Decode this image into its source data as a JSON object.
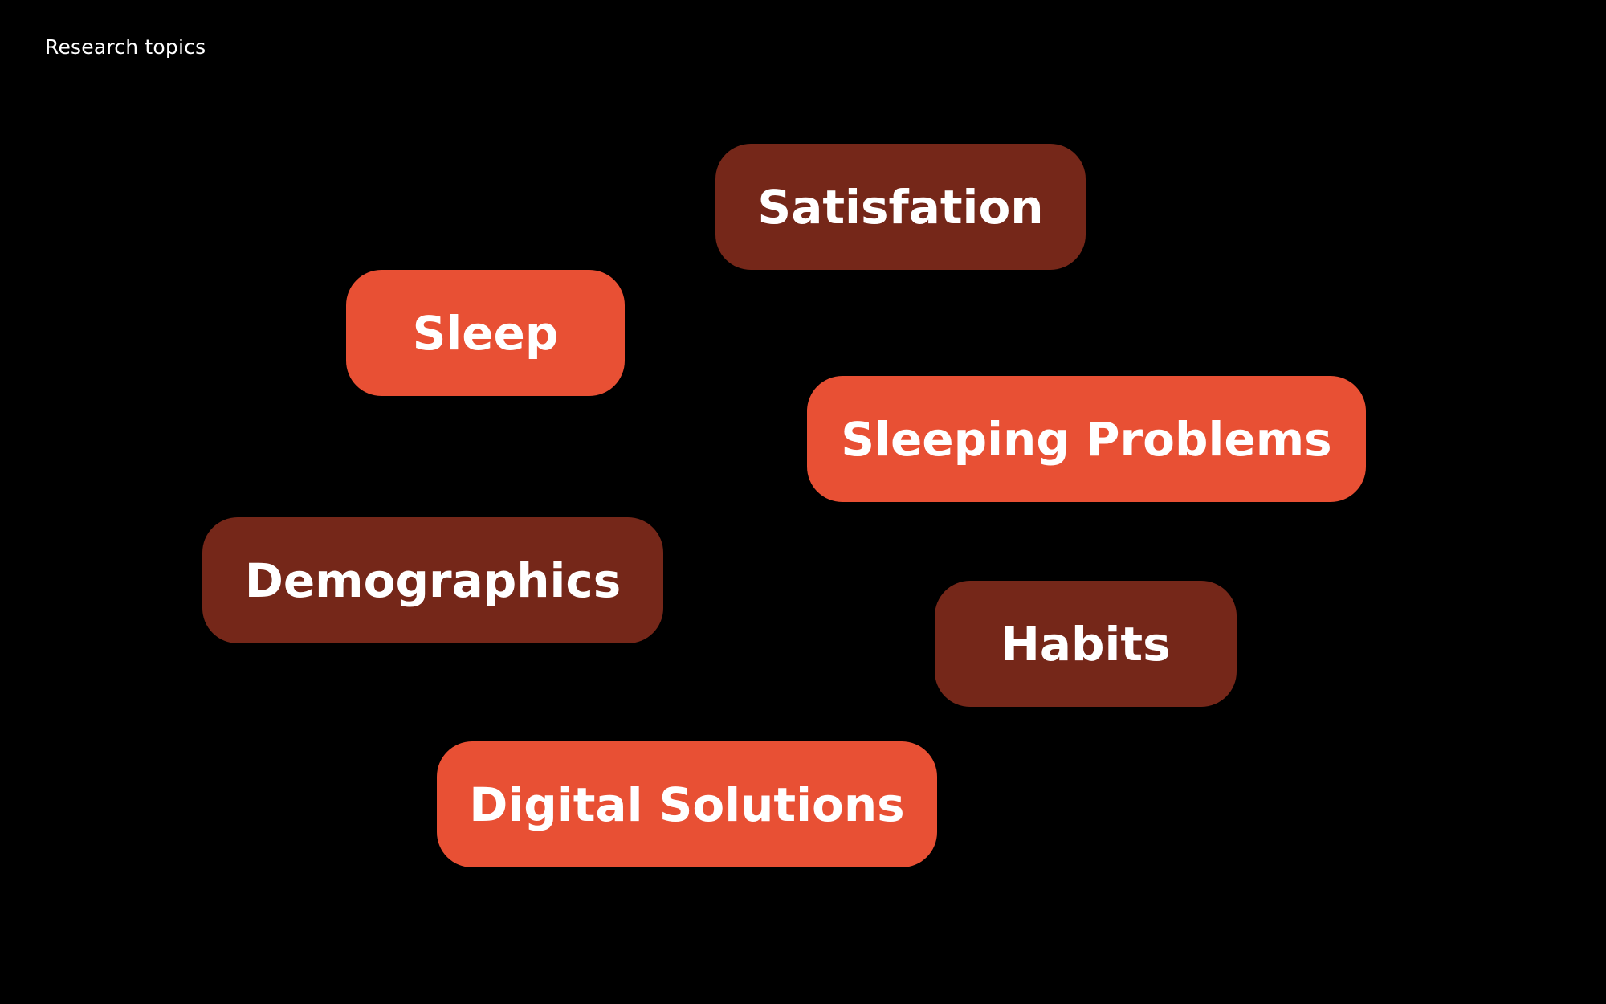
{
  "title": "Research topics",
  "colors": {
    "background": "#000000",
    "bright_tag": "#e85034",
    "dark_tag": "#752719",
    "text": "#ffffff"
  },
  "topics": [
    {
      "label": "Satisfation",
      "tone": "dark"
    },
    {
      "label": "Sleep",
      "tone": "bright"
    },
    {
      "label": "Sleeping Problems",
      "tone": "bright"
    },
    {
      "label": "Demographics",
      "tone": "dark"
    },
    {
      "label": "Habits",
      "tone": "dark"
    },
    {
      "label": "Digital Solutions",
      "tone": "bright"
    }
  ]
}
